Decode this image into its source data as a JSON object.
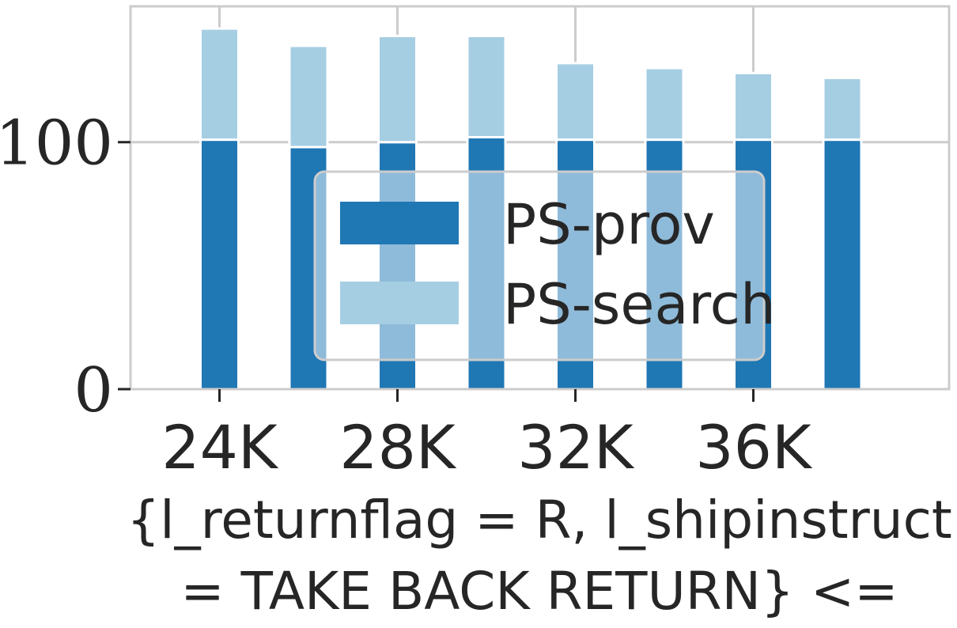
{
  "chart_data": {
    "type": "bar",
    "stacked": true,
    "x_tick_labels": [
      "24K",
      "28K",
      "32K",
      "36K"
    ],
    "x": [
      24,
      26,
      28,
      30,
      32,
      34,
      36,
      38
    ],
    "x_unit": "K",
    "series": [
      {
        "name": "PS-prov",
        "color": "#1f77b4",
        "values": [
          101,
          98,
          100,
          102,
          101,
          101,
          101,
          101
        ]
      },
      {
        "name": "PS-search",
        "color": "#a6cee3",
        "values": [
          45,
          41,
          43,
          41,
          31,
          29,
          27,
          25
        ]
      }
    ],
    "y_ticks": [
      0,
      100
    ],
    "ylim": [
      0,
      155
    ],
    "xlabel_lines": [
      "{l_returnflag = R, l_shipinstruct",
      "= TAKE BACK RETURN} <="
    ],
    "legend_position": "center",
    "grid": true
  }
}
